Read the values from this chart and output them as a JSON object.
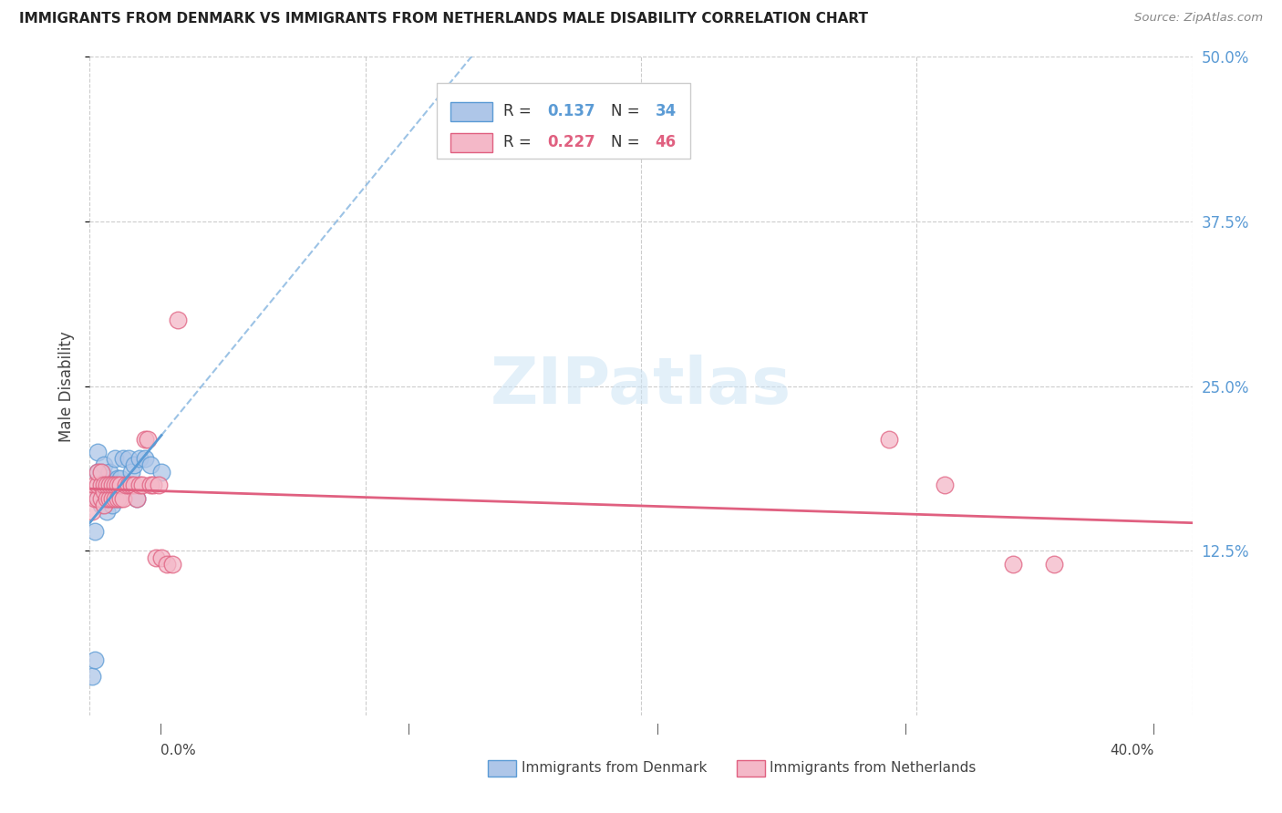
{
  "title": "IMMIGRANTS FROM DENMARK VS IMMIGRANTS FROM NETHERLANDS MALE DISABILITY CORRELATION CHART",
  "source": "Source: ZipAtlas.com",
  "ylabel": "Male Disability",
  "xlim": [
    0.0,
    0.4
  ],
  "ylim": [
    0.0,
    0.5
  ],
  "denmark_R": 0.137,
  "denmark_N": 34,
  "netherlands_R": 0.227,
  "netherlands_N": 46,
  "color_denmark_fill": "#aec6e8",
  "color_denmark_edge": "#5b9bd5",
  "color_netherlands_fill": "#f4b8c8",
  "color_netherlands_edge": "#e06080",
  "line_color_denmark": "#5b9bd5",
  "line_color_netherlands": "#e06080",
  "background_color": "#ffffff",
  "denmark_x": [
    0.001,
    0.002,
    0.002,
    0.003,
    0.003,
    0.003,
    0.004,
    0.004,
    0.004,
    0.005,
    0.005,
    0.005,
    0.006,
    0.006,
    0.006,
    0.007,
    0.007,
    0.008,
    0.008,
    0.009,
    0.009,
    0.01,
    0.01,
    0.011,
    0.012,
    0.013,
    0.014,
    0.015,
    0.016,
    0.017,
    0.018,
    0.02,
    0.022,
    0.026
  ],
  "denmark_y": [
    0.03,
    0.042,
    0.14,
    0.185,
    0.2,
    0.165,
    0.16,
    0.175,
    0.185,
    0.165,
    0.175,
    0.19,
    0.155,
    0.17,
    0.18,
    0.165,
    0.185,
    0.16,
    0.175,
    0.175,
    0.195,
    0.165,
    0.18,
    0.18,
    0.195,
    0.175,
    0.195,
    0.185,
    0.19,
    0.165,
    0.195,
    0.195,
    0.19,
    0.185
  ],
  "netherlands_x": [
    0.001,
    0.002,
    0.002,
    0.003,
    0.003,
    0.003,
    0.004,
    0.004,
    0.004,
    0.005,
    0.005,
    0.005,
    0.006,
    0.006,
    0.007,
    0.007,
    0.008,
    0.008,
    0.009,
    0.009,
    0.01,
    0.01,
    0.011,
    0.011,
    0.012,
    0.013,
    0.014,
    0.015,
    0.016,
    0.017,
    0.018,
    0.019,
    0.02,
    0.021,
    0.022,
    0.023,
    0.024,
    0.025,
    0.026,
    0.028,
    0.03,
    0.032,
    0.29,
    0.31,
    0.335,
    0.35
  ],
  "netherlands_y": [
    0.155,
    0.165,
    0.175,
    0.165,
    0.175,
    0.185,
    0.165,
    0.175,
    0.185,
    0.16,
    0.17,
    0.175,
    0.165,
    0.175,
    0.165,
    0.175,
    0.165,
    0.175,
    0.165,
    0.175,
    0.165,
    0.175,
    0.165,
    0.175,
    0.165,
    0.175,
    0.175,
    0.175,
    0.175,
    0.165,
    0.175,
    0.175,
    0.21,
    0.21,
    0.175,
    0.175,
    0.12,
    0.175,
    0.12,
    0.115,
    0.115,
    0.3,
    0.21,
    0.175,
    0.115,
    0.115
  ]
}
